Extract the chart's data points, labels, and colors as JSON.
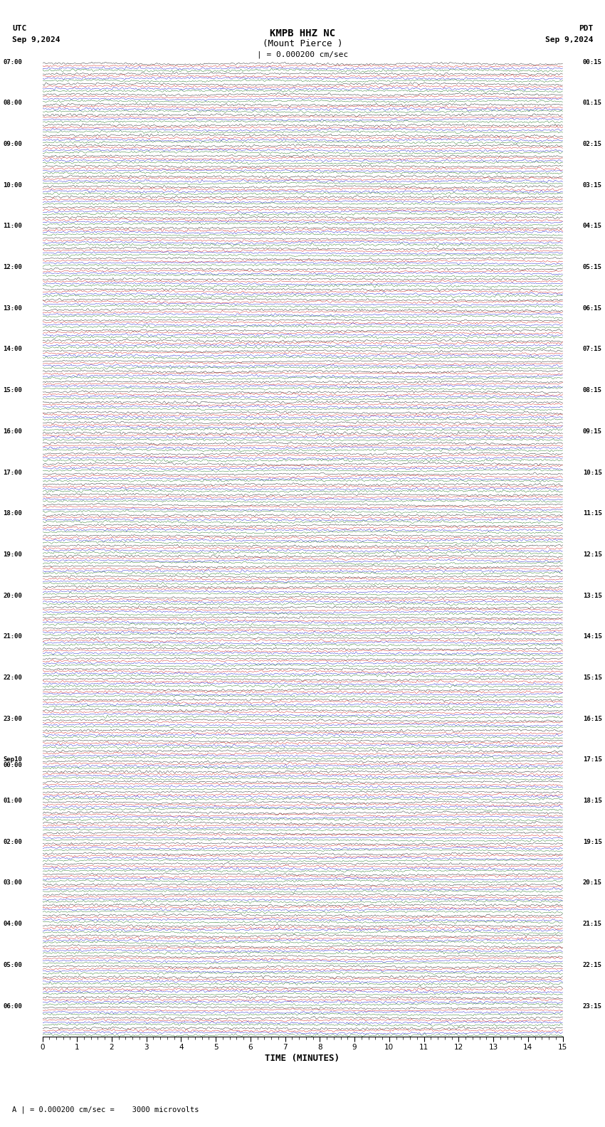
{
  "title_line1": "KMPB HHZ NC",
  "title_line2": "(Mount Pierce )",
  "utc_label": "UTC",
  "utc_date": "Sep 9,2024",
  "pdt_label": "PDT",
  "pdt_date": "Sep 9,2024",
  "scale_text": "| = 0.000200 cm/sec",
  "bottom_scale_text": "A | = 0.000200 cm/sec =    3000 microvolts",
  "xlabel": "TIME (MINUTES)",
  "xticks": [
    0,
    1,
    2,
    3,
    4,
    5,
    6,
    7,
    8,
    9,
    10,
    11,
    12,
    13,
    14,
    15
  ],
  "xmin": 0,
  "xmax": 15,
  "background_color": "#ffffff",
  "trace_colors": [
    "#000000",
    "#cc0000",
    "#0000cc",
    "#006600"
  ],
  "left_time_labels": [
    "07:00",
    "",
    "",
    "",
    "08:00",
    "",
    "",
    "",
    "09:00",
    "",
    "",
    "",
    "10:00",
    "",
    "",
    "",
    "11:00",
    "",
    "",
    "",
    "12:00",
    "",
    "",
    "",
    "13:00",
    "",
    "",
    "",
    "14:00",
    "",
    "",
    "",
    "15:00",
    "",
    "",
    "",
    "16:00",
    "",
    "",
    "",
    "17:00",
    "",
    "",
    "",
    "18:00",
    "",
    "",
    "",
    "19:00",
    "",
    "",
    "",
    "20:00",
    "",
    "",
    "",
    "21:00",
    "",
    "",
    "",
    "22:00",
    "",
    "",
    "",
    "23:00",
    "",
    "",
    "",
    "Sep10\n00:00",
    "",
    "",
    "",
    "01:00",
    "",
    "",
    "",
    "02:00",
    "",
    "",
    "",
    "03:00",
    "",
    "",
    "",
    "04:00",
    "",
    "",
    "",
    "05:00",
    "",
    "",
    "",
    "06:00",
    "",
    ""
  ],
  "right_time_labels": [
    "00:15",
    "",
    "",
    "",
    "01:15",
    "",
    "",
    "",
    "02:15",
    "",
    "",
    "",
    "03:15",
    "",
    "",
    "",
    "04:15",
    "",
    "",
    "",
    "05:15",
    "",
    "",
    "",
    "06:15",
    "",
    "",
    "",
    "07:15",
    "",
    "",
    "",
    "08:15",
    "",
    "",
    "",
    "09:15",
    "",
    "",
    "",
    "10:15",
    "",
    "",
    "",
    "11:15",
    "",
    "",
    "",
    "12:15",
    "",
    "",
    "",
    "13:15",
    "",
    "",
    "",
    "14:15",
    "",
    "",
    "",
    "15:15",
    "",
    "",
    "",
    "16:15",
    "",
    "",
    "",
    "17:15",
    "",
    "",
    "",
    "18:15",
    "",
    "",
    "",
    "19:15",
    "",
    "",
    "",
    "20:15",
    "",
    "",
    "",
    "21:15",
    "",
    "",
    "",
    "22:15",
    "",
    "",
    "",
    "23:15",
    "",
    ""
  ],
  "num_rows": 95,
  "traces_per_row": 4,
  "amplitude_scale": 0.4,
  "noise_seed": 42,
  "fig_width": 8.5,
  "fig_height": 15.84,
  "dpi": 100
}
